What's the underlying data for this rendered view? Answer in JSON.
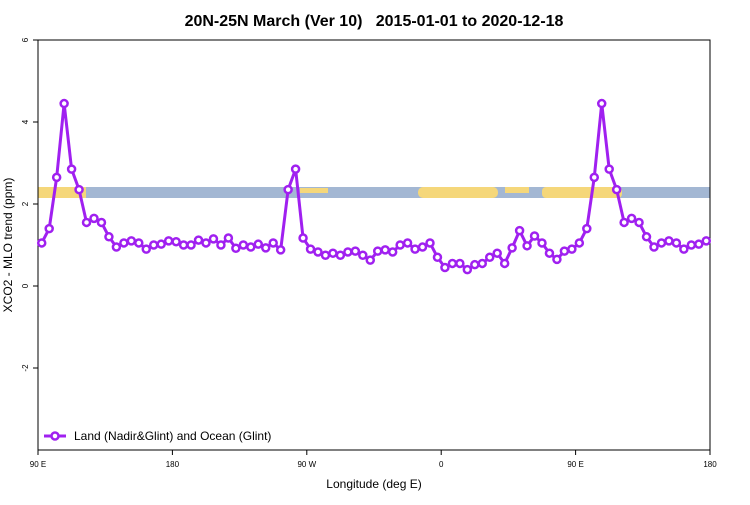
{
  "chart_data": {
    "type": "line",
    "title": "20N-25N March (Ver 10)   2015-01-01 to 2020-12-18",
    "x_label": "Longitude (deg E)",
    "y_label": "XCO2 - MLO trend (ppm)",
    "xlim": [
      90,
      540
    ],
    "xticks": [
      {
        "value": 90,
        "label": "90 E"
      },
      180,
      {
        "value": 270,
        "label": "90 W"
      },
      {
        "value": 360,
        "label": "0"
      },
      {
        "value": 450,
        "label": "90 E"
      },
      {
        "value": 540,
        "label": "180"
      }
    ],
    "ylim": [
      -4,
      6
    ],
    "yticks": [
      -2,
      0,
      2,
      4,
      6
    ],
    "grid": false,
    "legend_position": "bottom-left",
    "x": [
      92.5,
      97.5,
      102.5,
      107.5,
      112.5,
      117.5,
      122.5,
      127.5,
      132.5,
      137.5,
      142.5,
      147.5,
      152.5,
      157.5,
      162.5,
      167.5,
      172.5,
      177.5,
      182.5,
      187.5,
      192.5,
      197.5,
      202.5,
      207.5,
      212.5,
      217.5,
      222.5,
      227.5,
      232.5,
      237.5,
      242.5,
      247.5,
      252.5,
      257.5,
      262.5,
      267.5,
      272.5,
      277.5,
      282.5,
      287.5,
      292.5,
      297.5,
      302.5,
      307.5,
      312.5,
      317.5,
      322.5,
      327.5,
      332.5,
      337.5,
      342.5,
      347.5,
      352.5,
      357.5,
      362.5,
      367.5,
      372.5,
      377.5,
      382.5,
      387.5,
      392.5,
      397.5,
      402.5,
      407.5,
      412.5,
      417.5,
      422.5,
      427.5,
      432.5,
      437.5,
      442.5,
      447.5,
      452.5,
      457.5,
      462.5,
      467.5,
      472.5,
      477.5,
      482.5,
      487.5,
      492.5,
      497.5,
      502.5,
      507.5,
      512.5,
      517.5,
      522.5,
      527.5,
      532.5,
      537.5
    ],
    "series": [
      {
        "name": "Land (Nadir&Glint) and Ocean (Glint)",
        "color": "#a020f0",
        "values": [
          1.05,
          1.4,
          2.65,
          4.45,
          2.85,
          2.35,
          1.55,
          1.65,
          1.55,
          1.2,
          0.95,
          1.05,
          1.1,
          1.05,
          0.9,
          1.0,
          1.02,
          1.1,
          1.08,
          1.0,
          1.0,
          1.12,
          1.05,
          1.15,
          1.0,
          1.17,
          0.92,
          1.0,
          0.95,
          1.02,
          0.93,
          1.05,
          0.88,
          2.35,
          2.85,
          1.17,
          0.9,
          0.83,
          0.75,
          0.8,
          0.75,
          0.83,
          0.85,
          0.75,
          0.63,
          0.85,
          0.88,
          0.83,
          1.0,
          1.05,
          0.9,
          0.95,
          1.05,
          0.7,
          0.45,
          0.55,
          0.55,
          0.4,
          0.52,
          0.55,
          0.7,
          0.8,
          0.55,
          0.93,
          1.35,
          0.98,
          1.22,
          1.05,
          0.8,
          0.65,
          0.85,
          0.9,
          1.05,
          1.4,
          2.65,
          4.45,
          2.85,
          2.35,
          1.55,
          1.65,
          1.55,
          1.2,
          0.95,
          1.05,
          1.1,
          1.05,
          0.9,
          1.0,
          1.02,
          1.1
        ]
      }
    ]
  }
}
